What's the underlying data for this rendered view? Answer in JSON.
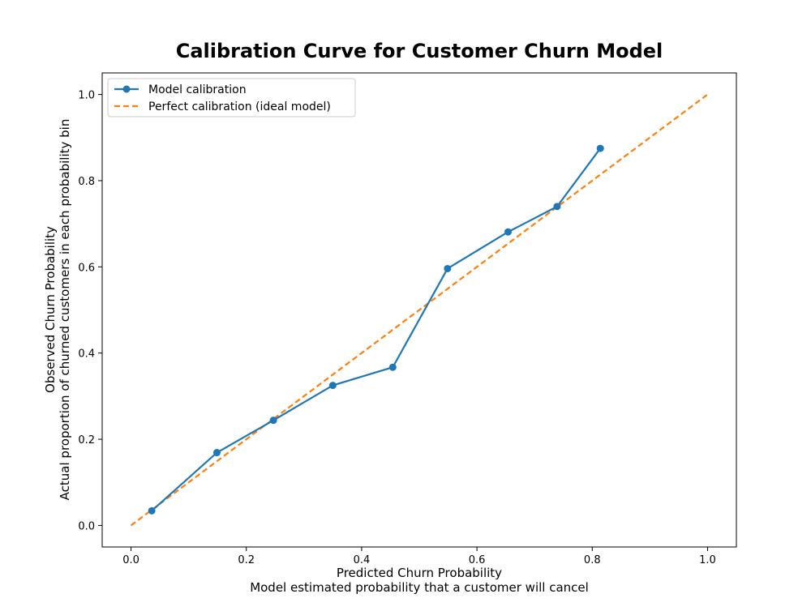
{
  "chart_data": {
    "type": "line",
    "title": "Calibration Curve for Customer Churn Model",
    "xlabel": "Predicted Churn Probability",
    "xlabel_sub": "Model estimated probability that a customer will cancel",
    "ylabel": "Observed Churn Probability",
    "ylabel_sub": "Actual proportion of churned customers in each probability bin",
    "xlim": [
      -0.05,
      1.05
    ],
    "ylim": [
      -0.05,
      1.05
    ],
    "x_ticks": [
      0.0,
      0.2,
      0.4,
      0.6,
      0.8,
      1.0
    ],
    "y_ticks": [
      0.0,
      0.2,
      0.4,
      0.6,
      0.8,
      1.0
    ],
    "x_tick_labels": [
      "0.0",
      "0.2",
      "0.4",
      "0.6",
      "0.8",
      "1.0"
    ],
    "y_tick_labels": [
      "0.0",
      "0.2",
      "0.4",
      "0.6",
      "0.8",
      "1.0"
    ],
    "grid": false,
    "legend_position": "top-left",
    "series": [
      {
        "name": "Model calibration",
        "color": "#1f77b4",
        "style": "solid",
        "marker": "circle",
        "x": [
          0.036,
          0.149,
          0.247,
          0.35,
          0.454,
          0.549,
          0.654,
          0.739,
          0.814
        ],
        "y": [
          0.034,
          0.169,
          0.244,
          0.325,
          0.367,
          0.596,
          0.681,
          0.74,
          0.875
        ]
      },
      {
        "name": "Perfect calibration (ideal model)",
        "color": "#ff7f0e",
        "style": "dashed",
        "marker": "none",
        "x": [
          0.0,
          1.0
        ],
        "y": [
          0.0,
          1.0
        ]
      }
    ]
  }
}
